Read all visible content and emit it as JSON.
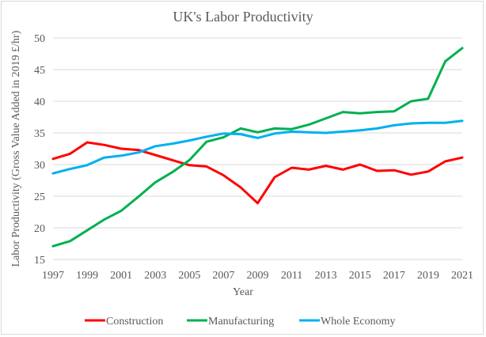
{
  "chart_data": {
    "type": "line",
    "title": "UK's Labor Productivity",
    "xlabel": "Year",
    "ylabel": "Labor Productivity (Gross Value Added in 2019 £/hr)",
    "ylim": [
      15,
      50
    ],
    "xlim": [
      1997,
      2021
    ],
    "y_ticks": [
      15,
      20,
      25,
      30,
      35,
      40,
      45,
      50
    ],
    "x_tick_labels": [
      "1997",
      "1999",
      "2001",
      "2003",
      "2005",
      "2007",
      "2009",
      "2011",
      "2013",
      "2015",
      "2017",
      "2019",
      "2021"
    ],
    "grid": true,
    "legend_position": "bottom",
    "x": [
      1997,
      1998,
      1999,
      2000,
      2001,
      2002,
      2003,
      2004,
      2005,
      2006,
      2007,
      2008,
      2009,
      2010,
      2011,
      2012,
      2013,
      2014,
      2015,
      2016,
      2017,
      2018,
      2019,
      2020,
      2021
    ],
    "series": [
      {
        "name": "Construction",
        "color": "#ff0000",
        "values": [
          30.9,
          31.7,
          33.5,
          33.1,
          32.5,
          32.3,
          31.5,
          30.7,
          29.9,
          29.7,
          28.3,
          26.4,
          23.9,
          28.0,
          29.5,
          29.2,
          29.8,
          29.2,
          30.0,
          29.0,
          29.1,
          28.4,
          28.9,
          30.5,
          31.1
        ]
      },
      {
        "name": "Manufacturing",
        "color": "#00b050",
        "values": [
          17.1,
          17.9,
          19.6,
          21.3,
          22.7,
          24.9,
          27.2,
          28.8,
          30.7,
          33.6,
          34.3,
          35.7,
          35.1,
          35.7,
          35.6,
          36.3,
          37.3,
          38.3,
          38.1,
          38.3,
          38.4,
          40.0,
          40.4,
          46.3,
          48.4
        ]
      },
      {
        "name": "Whole Economy",
        "color": "#00b0f0",
        "values": [
          28.6,
          29.3,
          29.9,
          31.1,
          31.4,
          31.9,
          32.9,
          33.3,
          33.8,
          34.4,
          34.9,
          34.8,
          34.2,
          34.9,
          35.2,
          35.1,
          35.0,
          35.2,
          35.4,
          35.7,
          36.2,
          36.5,
          36.6,
          36.6,
          36.9
        ]
      }
    ]
  }
}
